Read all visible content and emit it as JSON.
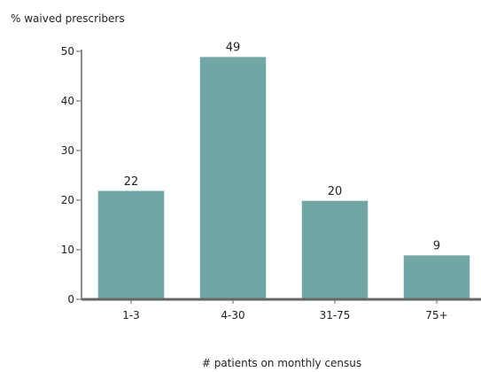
{
  "chart_data": {
    "type": "bar",
    "title": "",
    "ylabel": "% waived prescribers",
    "xlabel": "# patients on monthly census",
    "categories": [
      "1-3",
      "4-30",
      "31-75",
      "75+"
    ],
    "values": [
      22,
      49,
      20,
      9
    ],
    "data_labels": [
      "22",
      "49",
      "20",
      "9"
    ],
    "ylim": [
      0,
      50
    ],
    "yticks": [
      0,
      10,
      20,
      30,
      40,
      50
    ],
    "ytick_labels": [
      "0",
      "10",
      "20",
      "30",
      "40",
      "50"
    ],
    "grid": false,
    "legend": "none",
    "bar_color": "#72a6a4",
    "bar_edge_color": "#ffffff",
    "axis_color": "#666666"
  }
}
